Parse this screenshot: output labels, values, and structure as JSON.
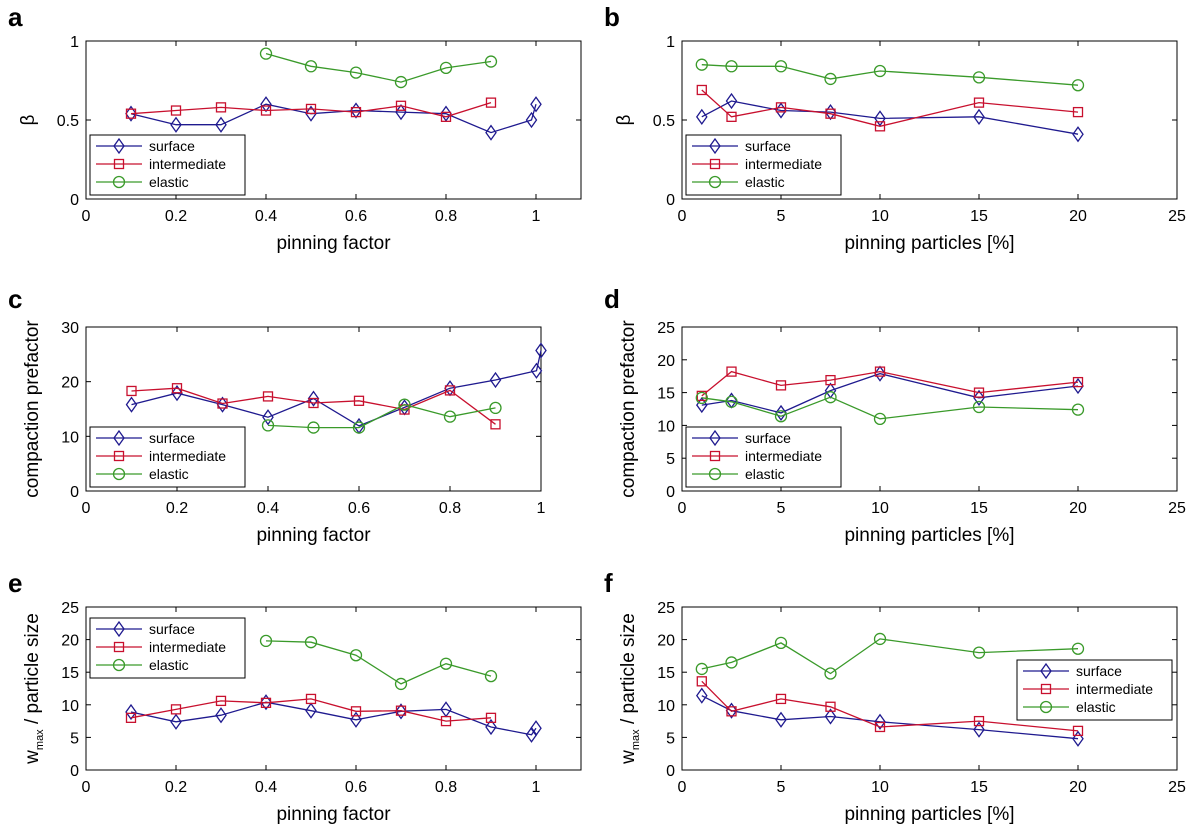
{
  "chart_data": [
    {
      "panel_label": "a",
      "type": "line",
      "xlabel": "pinning factor",
      "ylabel": "β",
      "xlim": [
        0,
        1.1
      ],
      "ylim": [
        0,
        1
      ],
      "xticks": [
        0,
        0.2,
        0.4,
        0.6,
        0.8,
        1
      ],
      "xtick_labels": [
        "0",
        "0.2",
        "0.4",
        "0.6",
        "0.8",
        "1"
      ],
      "yticks": [
        0,
        0.5,
        1
      ],
      "ytick_labels": [
        "0",
        "0.5",
        "1"
      ],
      "legend_position": "bottom-left",
      "series": [
        {
          "name": "surface",
          "color": "#1f1a8f",
          "marker": "diamond",
          "x": [
            0.1,
            0.2,
            0.3,
            0.4,
            0.5,
            0.6,
            0.7,
            0.8,
            0.9,
            0.99,
            1.0
          ],
          "y": [
            0.54,
            0.47,
            0.47,
            0.6,
            0.54,
            0.56,
            0.55,
            0.54,
            0.42,
            0.5,
            0.6
          ]
        },
        {
          "name": "intermediate",
          "color": "#c8102e",
          "marker": "square",
          "x": [
            0.1,
            0.2,
            0.3,
            0.4,
            0.5,
            0.6,
            0.7,
            0.8,
            0.9
          ],
          "y": [
            0.54,
            0.56,
            0.58,
            0.56,
            0.57,
            0.55,
            0.59,
            0.52,
            0.61
          ]
        },
        {
          "name": "elastic",
          "color": "#3a9a2a",
          "marker": "circle",
          "x": [
            0.4,
            0.5,
            0.6,
            0.7,
            0.8,
            0.9
          ],
          "y": [
            0.92,
            0.84,
            0.8,
            0.74,
            0.83,
            0.87
          ]
        }
      ]
    },
    {
      "panel_label": "b",
      "type": "line",
      "xlabel": "pinning particles [%]",
      "ylabel": "β",
      "xlim": [
        0,
        25
      ],
      "ylim": [
        0,
        1
      ],
      "xticks": [
        0,
        5,
        10,
        15,
        20,
        25
      ],
      "xtick_labels": [
        "0",
        "5",
        "10",
        "15",
        "20",
        "25"
      ],
      "yticks": [
        0,
        0.5,
        1
      ],
      "ytick_labels": [
        "0",
        "0.5",
        "1"
      ],
      "legend_position": "bottom-left",
      "series": [
        {
          "name": "surface",
          "color": "#1f1a8f",
          "marker": "diamond",
          "x": [
            1,
            2.5,
            5,
            7.5,
            10,
            15,
            20
          ],
          "y": [
            0.52,
            0.62,
            0.56,
            0.55,
            0.51,
            0.52,
            0.41
          ]
        },
        {
          "name": "intermediate",
          "color": "#c8102e",
          "marker": "square",
          "x": [
            1,
            2.5,
            5,
            7.5,
            10,
            15,
            20
          ],
          "y": [
            0.69,
            0.52,
            0.58,
            0.54,
            0.46,
            0.61,
            0.55
          ]
        },
        {
          "name": "elastic",
          "color": "#3a9a2a",
          "marker": "circle",
          "x": [
            1,
            2.5,
            5,
            7.5,
            10,
            15,
            20
          ],
          "y": [
            0.85,
            0.84,
            0.84,
            0.76,
            0.81,
            0.77,
            0.72
          ]
        }
      ]
    },
    {
      "panel_label": "c",
      "type": "line",
      "xlabel": "pinning factor",
      "ylabel": "compaction prefactor",
      "xlim": [
        0,
        1
      ],
      "ylim": [
        0,
        30
      ],
      "xticks": [
        0,
        0.2,
        0.4,
        0.6,
        0.8,
        1
      ],
      "xtick_labels": [
        "0",
        "0.2",
        "0.4",
        "0.6",
        "0.8",
        "1"
      ],
      "yticks": [
        0,
        10,
        20,
        30
      ],
      "ytick_labels": [
        "0",
        "10",
        "20",
        "30"
      ],
      "legend_position": "bottom-left",
      "series": [
        {
          "name": "surface",
          "color": "#1f1a8f",
          "marker": "diamond",
          "x": [
            0.1,
            0.2,
            0.3,
            0.4,
            0.5,
            0.6,
            0.7,
            0.8,
            0.9,
            0.99,
            1.0
          ],
          "y": [
            15.8,
            17.9,
            15.8,
            13.5,
            16.9,
            11.9,
            15.3,
            18.8,
            20.3,
            22.0,
            25.7
          ]
        },
        {
          "name": "intermediate",
          "color": "#c8102e",
          "marker": "square",
          "x": [
            0.1,
            0.2,
            0.3,
            0.4,
            0.5,
            0.6,
            0.7,
            0.8,
            0.9
          ],
          "y": [
            18.3,
            18.8,
            16.0,
            17.3,
            16.1,
            16.5,
            14.9,
            18.4,
            12.2
          ]
        },
        {
          "name": "elastic",
          "color": "#3a9a2a",
          "marker": "circle",
          "x": [
            0.4,
            0.5,
            0.6,
            0.7,
            0.8,
            0.9
          ],
          "y": [
            12.0,
            11.6,
            11.6,
            15.8,
            13.6,
            15.2
          ]
        }
      ]
    },
    {
      "panel_label": "d",
      "type": "line",
      "xlabel": "pinning particles [%]",
      "ylabel": "compaction prefactor",
      "xlim": [
        0,
        25
      ],
      "ylim": [
        0,
        25
      ],
      "xticks": [
        0,
        5,
        10,
        15,
        20,
        25
      ],
      "xtick_labels": [
        "0",
        "5",
        "10",
        "15",
        "20",
        "25"
      ],
      "yticks": [
        0,
        5,
        10,
        15,
        20,
        25
      ],
      "ytick_labels": [
        "0",
        "5",
        "10",
        "15",
        "20",
        "25"
      ],
      "legend_position": "bottom-left",
      "series": [
        {
          "name": "surface",
          "color": "#1f1a8f",
          "marker": "diamond",
          "x": [
            1,
            2.5,
            5,
            7.5,
            10,
            15,
            20
          ],
          "y": [
            13.1,
            13.8,
            11.9,
            15.3,
            17.9,
            14.2,
            16.0
          ]
        },
        {
          "name": "intermediate",
          "color": "#c8102e",
          "marker": "square",
          "x": [
            1,
            2.5,
            5,
            7.5,
            10,
            15,
            20
          ],
          "y": [
            14.5,
            18.2,
            16.1,
            16.9,
            18.2,
            15.0,
            16.6
          ]
        },
        {
          "name": "elastic",
          "color": "#3a9a2a",
          "marker": "circle",
          "x": [
            1,
            2.5,
            5,
            7.5,
            10,
            15,
            20
          ],
          "y": [
            14.2,
            13.6,
            11.4,
            14.3,
            11.0,
            12.8,
            12.4
          ]
        }
      ]
    },
    {
      "panel_label": "e",
      "type": "line",
      "xlabel": "pinning factor",
      "ylabel_main": "w",
      "ylabel_sub": "max",
      "ylabel_rest": " / particle size",
      "xlim": [
        0,
        1.1
      ],
      "ylim": [
        0,
        25
      ],
      "xticks": [
        0,
        0.2,
        0.4,
        0.6,
        0.8,
        1
      ],
      "xtick_labels": [
        "0",
        "0.2",
        "0.4",
        "0.6",
        "0.8",
        "1"
      ],
      "yticks": [
        0,
        5,
        10,
        15,
        20,
        25
      ],
      "ytick_labels": [
        "0",
        "5",
        "10",
        "15",
        "20",
        "25"
      ],
      "legend_position": "top-left",
      "series": [
        {
          "name": "surface",
          "color": "#1f1a8f",
          "marker": "diamond",
          "x": [
            0.1,
            0.2,
            0.3,
            0.4,
            0.5,
            0.6,
            0.7,
            0.8,
            0.9,
            0.99,
            1.0
          ],
          "y": [
            8.9,
            7.4,
            8.4,
            10.4,
            9.1,
            7.7,
            9.0,
            9.3,
            6.6,
            5.4,
            6.4
          ]
        },
        {
          "name": "intermediate",
          "color": "#c8102e",
          "marker": "square",
          "x": [
            0.1,
            0.2,
            0.3,
            0.4,
            0.5,
            0.6,
            0.7,
            0.8,
            0.9
          ],
          "y": [
            8.0,
            9.3,
            10.6,
            10.3,
            10.9,
            9.0,
            9.1,
            7.5,
            8.0
          ]
        },
        {
          "name": "elastic",
          "color": "#3a9a2a",
          "marker": "circle",
          "x": [
            0.4,
            0.5,
            0.6,
            0.7,
            0.8,
            0.9
          ],
          "y": [
            19.8,
            19.6,
            17.6,
            13.2,
            16.3,
            14.4
          ]
        }
      ]
    },
    {
      "panel_label": "f",
      "type": "line",
      "xlabel": "pinning particles [%]",
      "ylabel_main": "w",
      "ylabel_sub": "max",
      "ylabel_rest": " / particle size",
      "xlim": [
        0,
        25
      ],
      "ylim": [
        0,
        25
      ],
      "xticks": [
        0,
        5,
        10,
        15,
        20,
        25
      ],
      "xtick_labels": [
        "0",
        "5",
        "10",
        "15",
        "20",
        "25"
      ],
      "yticks": [
        0,
        5,
        10,
        15,
        20,
        25
      ],
      "ytick_labels": [
        "0",
        "5",
        "10",
        "15",
        "20",
        "25"
      ],
      "legend_position": "right",
      "series": [
        {
          "name": "surface",
          "color": "#1f1a8f",
          "marker": "diamond",
          "x": [
            1,
            2.5,
            5,
            7.5,
            10,
            15,
            20
          ],
          "y": [
            11.4,
            9.1,
            7.7,
            8.2,
            7.4,
            6.2,
            4.8
          ]
        },
        {
          "name": "intermediate",
          "color": "#c8102e",
          "marker": "square",
          "x": [
            1,
            2.5,
            5,
            7.5,
            10,
            15,
            20
          ],
          "y": [
            13.6,
            9.0,
            10.9,
            9.7,
            6.6,
            7.5,
            6.0
          ]
        },
        {
          "name": "elastic",
          "color": "#3a9a2a",
          "marker": "circle",
          "x": [
            1,
            2.5,
            5,
            7.5,
            10,
            15,
            20
          ],
          "y": [
            15.5,
            16.5,
            19.5,
            14.8,
            20.1,
            18.0,
            18.6
          ]
        }
      ]
    }
  ]
}
